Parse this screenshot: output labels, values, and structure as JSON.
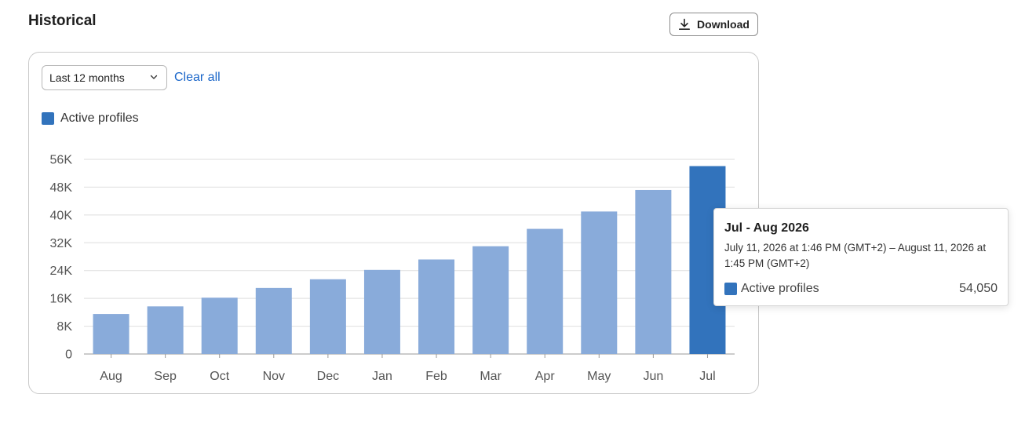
{
  "header": {
    "title": "Historical",
    "download_label": "Download"
  },
  "filters": {
    "range_value": "Last 12 months",
    "clear_label": "Clear all"
  },
  "colors": {
    "bar": "#89abda",
    "bar_active": "#3273bc",
    "grid": "#dedede",
    "axis": "#9a9a9a",
    "link": "#1a66c9"
  },
  "icons": {
    "download": "download-icon",
    "dropdown": "chevron-down-icon"
  },
  "chart_data": {
    "type": "bar",
    "categories": [
      "Aug",
      "Sep",
      "Oct",
      "Nov",
      "Dec",
      "Jan",
      "Feb",
      "Mar",
      "Apr",
      "May",
      "Jun",
      "Jul"
    ],
    "series": [
      {
        "name": "Active profiles",
        "values": [
          11500,
          13700,
          16200,
          19000,
          21500,
          24200,
          27200,
          31000,
          36000,
          41000,
          47200,
          54050
        ]
      }
    ],
    "ylim": [
      0,
      56000
    ],
    "yticks": [
      0,
      8000,
      16000,
      24000,
      32000,
      40000,
      48000,
      56000
    ],
    "ytick_labels": [
      "0",
      "8K",
      "16K",
      "24K",
      "32K",
      "40K",
      "48K",
      "56K"
    ],
    "highlighted_index": 11,
    "grid": true,
    "legend": "top-left"
  },
  "tooltip": {
    "title": "Jul - Aug 2026",
    "range": "July 11, 2026 at 1:46 PM (GMT+2) – August 11, 2026 at 1:45 PM (GMT+2)",
    "series_label": "Active profiles",
    "value": "54,050"
  }
}
